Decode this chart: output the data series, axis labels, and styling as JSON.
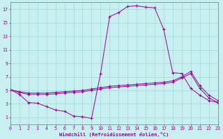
{
  "xlabel": "Windchill (Refroidissement éolien,°C)",
  "bg_color": "#c8f0f0",
  "grid_color": "#a0d8d8",
  "line_color": "#990099",
  "xlim": [
    0,
    23
  ],
  "ylim": [
    0,
    18
  ],
  "xticks": [
    0,
    1,
    2,
    3,
    4,
    5,
    6,
    7,
    8,
    9,
    10,
    11,
    12,
    13,
    14,
    15,
    16,
    17,
    18,
    19,
    20,
    21,
    22,
    23
  ],
  "yticks": [
    1,
    3,
    5,
    7,
    9,
    11,
    13,
    15,
    17
  ],
  "curve1_x": [
    0,
    1,
    2,
    3,
    4,
    5,
    6,
    7,
    8,
    9,
    10,
    11,
    12,
    13,
    14,
    15,
    16,
    17,
    18,
    19,
    20,
    21,
    22,
    23
  ],
  "curve1_y": [
    5.1,
    4.4,
    3.2,
    3.1,
    2.6,
    2.1,
    1.9,
    1.2,
    1.1,
    0.85,
    7.5,
    15.9,
    16.5,
    17.4,
    17.5,
    17.3,
    17.2,
    14.0,
    7.6,
    7.5,
    5.3,
    4.3,
    3.5,
    3.2
  ],
  "curve2_x": [
    0,
    1,
    2,
    3,
    4,
    5,
    6,
    7,
    8,
    9,
    10,
    11,
    12,
    13,
    14,
    15,
    16,
    17,
    18,
    19,
    20,
    21,
    22,
    23
  ],
  "curve2_y": [
    5.1,
    4.7,
    4.4,
    4.4,
    4.4,
    4.5,
    4.6,
    4.7,
    4.8,
    5.0,
    5.2,
    5.4,
    5.5,
    5.6,
    5.7,
    5.8,
    5.9,
    6.0,
    6.2,
    6.8,
    7.5,
    5.3,
    3.9,
    3.2
  ],
  "curve3_x": [
    0,
    1,
    2,
    3,
    4,
    5,
    6,
    7,
    8,
    9,
    10,
    11,
    12,
    13,
    14,
    15,
    16,
    17,
    18,
    19,
    20,
    21,
    22,
    23
  ],
  "curve3_y": [
    5.1,
    4.8,
    4.6,
    4.6,
    4.6,
    4.7,
    4.8,
    4.9,
    5.0,
    5.2,
    5.4,
    5.6,
    5.7,
    5.8,
    5.9,
    6.0,
    6.1,
    6.2,
    6.4,
    7.0,
    7.8,
    5.7,
    4.3,
    3.5
  ]
}
